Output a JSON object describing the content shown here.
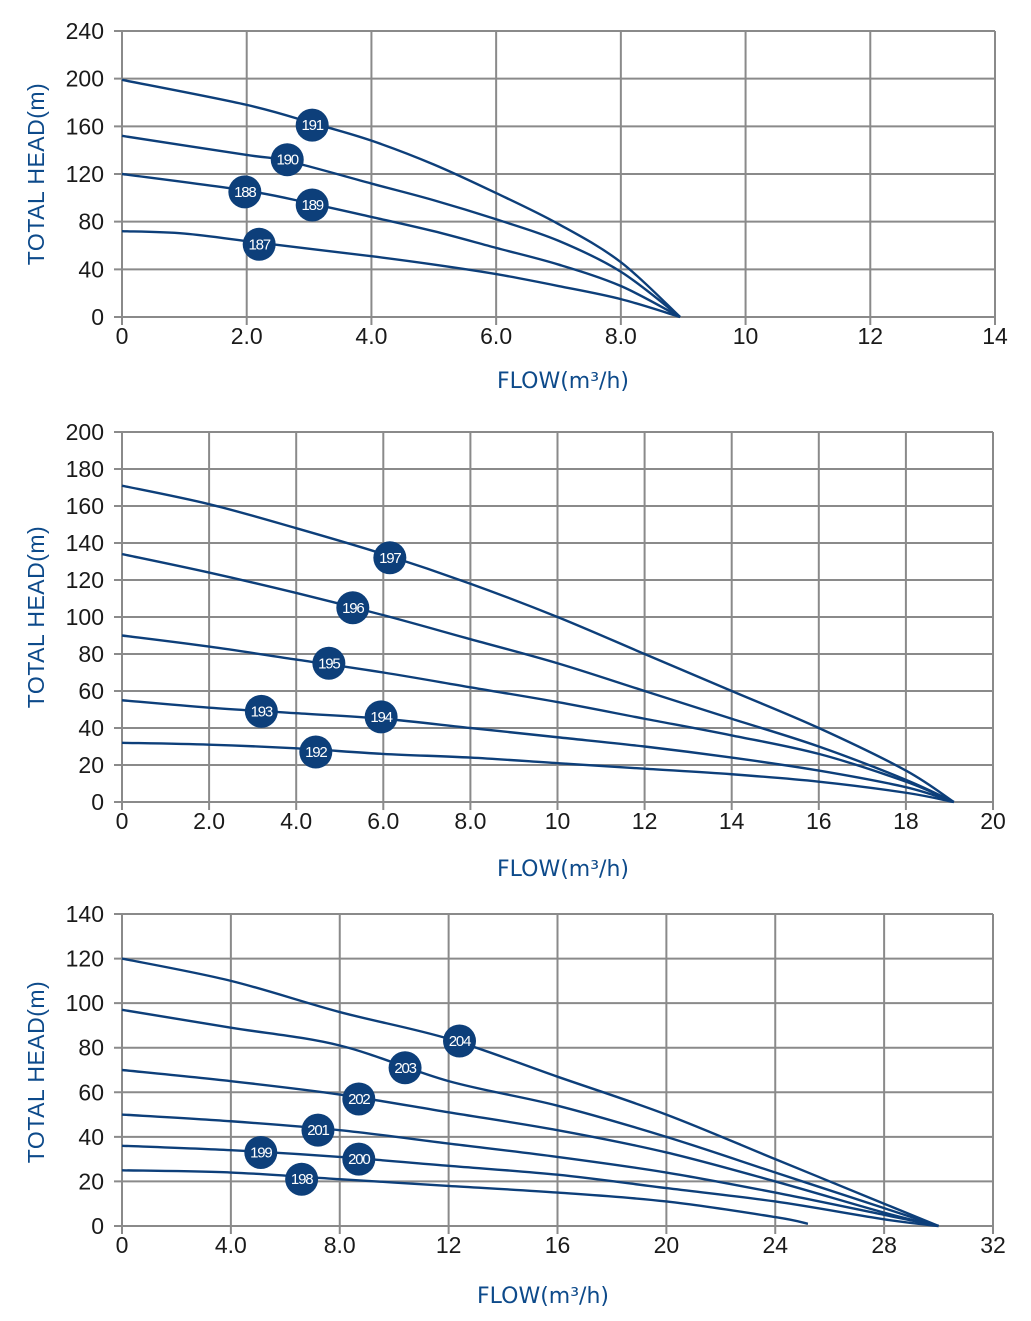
{
  "colors": {
    "curve": "#0d3f7a",
    "badge": "#0d3f7a",
    "grid": "#8a8a8a",
    "axis_title": "#0d4a8a"
  },
  "chart_data": [
    {
      "type": "line",
      "title": "",
      "xlabel": "FLOW(m³/h)",
      "ylabel": "TOTAL HEAD(m)",
      "xlim": [
        0,
        14
      ],
      "ylim": [
        0,
        240
      ],
      "xticks": [
        0,
        2,
        4,
        6,
        8,
        10,
        12,
        14
      ],
      "xtick_labels": [
        "0",
        "2.0",
        "4.0",
        "6.0",
        "8.0",
        "10",
        "12",
        "14"
      ],
      "yticks": [
        0,
        40,
        80,
        120,
        160,
        200,
        240
      ],
      "ytick_labels": [
        "0",
        "40",
        "80",
        "120",
        "160",
        "200",
        "240"
      ],
      "grid": true,
      "series": [
        {
          "name": "191",
          "points": [
            [
              0,
              199
            ],
            [
              2,
              178
            ],
            [
              3.1,
              162
            ],
            [
              4,
              148
            ],
            [
              5,
              128
            ],
            [
              6,
              104
            ],
            [
              7,
              78
            ],
            [
              8,
              46
            ],
            [
              8.95,
              0
            ]
          ]
        },
        {
          "name": "190",
          "points": [
            [
              0,
              152
            ],
            [
              2,
              136
            ],
            [
              2.65,
              131
            ],
            [
              4,
              112
            ],
            [
              5,
              98
            ],
            [
              6,
              82
            ],
            [
              7,
              64
            ],
            [
              8,
              38
            ],
            [
              8.95,
              0
            ]
          ]
        },
        {
          "name": "189",
          "points": [
            [
              0,
              120
            ],
            [
              2,
              106
            ],
            [
              3.05,
              95
            ],
            [
              4,
              84
            ],
            [
              5,
              72
            ],
            [
              6,
              58
            ],
            [
              7,
              44
            ],
            [
              8,
              26
            ],
            [
              8.95,
              0
            ]
          ]
        },
        {
          "name": "187",
          "points": [
            [
              0,
              72
            ],
            [
              1,
              70
            ],
            [
              2.25,
              62
            ],
            [
              4,
              51
            ],
            [
              5,
              44
            ],
            [
              6,
              36
            ],
            [
              7,
              26
            ],
            [
              8,
              15
            ],
            [
              8.95,
              0
            ]
          ]
        }
      ],
      "badges": [
        {
          "label": "191",
          "x": 3.05,
          "y": 161
        },
        {
          "label": "190",
          "x": 2.65,
          "y": 132
        },
        {
          "label": "188",
          "x": 1.97,
          "y": 105
        },
        {
          "label": "189",
          "x": 3.05,
          "y": 94
        },
        {
          "label": "187",
          "x": 2.2,
          "y": 61
        }
      ]
    },
    {
      "type": "line",
      "title": "",
      "xlabel": "FLOW(m³/h)",
      "ylabel": "TOTAL HEAD(m)",
      "xlim": [
        0,
        20
      ],
      "ylim": [
        0,
        200
      ],
      "xticks": [
        0,
        2,
        4,
        6,
        8,
        10,
        12,
        14,
        16,
        18,
        20
      ],
      "xtick_labels": [
        "0",
        "2.0",
        "4.0",
        "6.0",
        "8.0",
        "10",
        "12",
        "14",
        "16",
        "18",
        "20"
      ],
      "yticks": [
        0,
        20,
        40,
        60,
        80,
        100,
        120,
        140,
        160,
        180,
        200
      ],
      "ytick_labels": [
        "0",
        "20",
        "40",
        "60",
        "80",
        "100",
        "120",
        "140",
        "160",
        "180",
        "200"
      ],
      "grid": true,
      "series": [
        {
          "name": "197",
          "points": [
            [
              0,
              171
            ],
            [
              2,
              161
            ],
            [
              4,
              148
            ],
            [
              6,
              134
            ],
            [
              8,
              118
            ],
            [
              10,
              100
            ],
            [
              12,
              80
            ],
            [
              14,
              60
            ],
            [
              16,
              40
            ],
            [
              18,
              17
            ],
            [
              19.1,
              0
            ]
          ]
        },
        {
          "name": "196",
          "points": [
            [
              0,
              134
            ],
            [
              2,
              124
            ],
            [
              4,
              113
            ],
            [
              6,
              101
            ],
            [
              8,
              88
            ],
            [
              10,
              75
            ],
            [
              12,
              60
            ],
            [
              14,
              45
            ],
            [
              16,
              30
            ],
            [
              18,
              12
            ],
            [
              19.1,
              0
            ]
          ]
        },
        {
          "name": "195",
          "points": [
            [
              0,
              90
            ],
            [
              2,
              84
            ],
            [
              4,
              77
            ],
            [
              6,
              70
            ],
            [
              8,
              62
            ],
            [
              10,
              54
            ],
            [
              12,
              45
            ],
            [
              14,
              36
            ],
            [
              16,
              26
            ],
            [
              18,
              11
            ],
            [
              19.1,
              0
            ]
          ]
        },
        {
          "name": "194",
          "points": [
            [
              0,
              55
            ],
            [
              2,
              51
            ],
            [
              4,
              48
            ],
            [
              6,
              45
            ],
            [
              8,
              40
            ],
            [
              10,
              35
            ],
            [
              12,
              30
            ],
            [
              14,
              24
            ],
            [
              16,
              17
            ],
            [
              18,
              8
            ],
            [
              19.1,
              0
            ]
          ]
        },
        {
          "name": "192",
          "points": [
            [
              0,
              32
            ],
            [
              2,
              31
            ],
            [
              4,
              29
            ],
            [
              6,
              26
            ],
            [
              8,
              24
            ],
            [
              10,
              21
            ],
            [
              12,
              18
            ],
            [
              14,
              15
            ],
            [
              16,
              11
            ],
            [
              18,
              5
            ],
            [
              19.1,
              0
            ]
          ]
        }
      ],
      "badges": [
        {
          "label": "197",
          "x": 6.15,
          "y": 132
        },
        {
          "label": "196",
          "x": 5.3,
          "y": 105
        },
        {
          "label": "195",
          "x": 4.75,
          "y": 75
        },
        {
          "label": "193",
          "x": 3.2,
          "y": 49
        },
        {
          "label": "194",
          "x": 5.95,
          "y": 46
        },
        {
          "label": "192",
          "x": 4.45,
          "y": 27
        }
      ]
    },
    {
      "type": "line",
      "title": "",
      "xlabel": "FLOW(m³/h)",
      "ylabel": "TOTAL HEAD(m)",
      "xlim": [
        0,
        32
      ],
      "ylim": [
        0,
        140
      ],
      "xticks": [
        0,
        4,
        8,
        12,
        16,
        20,
        24,
        28,
        32
      ],
      "xtick_labels": [
        "0",
        "4.0",
        "8.0",
        "12",
        "16",
        "20",
        "24",
        "28",
        "32"
      ],
      "yticks": [
        0,
        20,
        40,
        60,
        80,
        100,
        120,
        140
      ],
      "ytick_labels": [
        "0",
        "20",
        "40",
        "60",
        "80",
        "100",
        "120",
        "140"
      ],
      "grid": true,
      "series": [
        {
          "name": "204",
          "points": [
            [
              0,
              120
            ],
            [
              4,
              110
            ],
            [
              8,
              96
            ],
            [
              12,
              84
            ],
            [
              16,
              67
            ],
            [
              20,
              50
            ],
            [
              24,
              30
            ],
            [
              28,
              10
            ],
            [
              30,
              0
            ]
          ]
        },
        {
          "name": "203",
          "points": [
            [
              0,
              97
            ],
            [
              4,
              89
            ],
            [
              8,
              81
            ],
            [
              12,
              65
            ],
            [
              16,
              54
            ],
            [
              20,
              40
            ],
            [
              24,
              24
            ],
            [
              28,
              8
            ],
            [
              30,
              0
            ]
          ]
        },
        {
          "name": "202",
          "points": [
            [
              0,
              70
            ],
            [
              4,
              65
            ],
            [
              8,
              59
            ],
            [
              12,
              51
            ],
            [
              16,
              43
            ],
            [
              20,
              33
            ],
            [
              24,
              20
            ],
            [
              28,
              6
            ],
            [
              30,
              0
            ]
          ]
        },
        {
          "name": "201",
          "points": [
            [
              0,
              50
            ],
            [
              4,
              47
            ],
            [
              8,
              43
            ],
            [
              12,
              37
            ],
            [
              16,
              31
            ],
            [
              20,
              24
            ],
            [
              24,
              15
            ],
            [
              28,
              5
            ],
            [
              30,
              0
            ]
          ]
        },
        {
          "name": "200",
          "points": [
            [
              0,
              36
            ],
            [
              4,
              34
            ],
            [
              8,
              31
            ],
            [
              12,
              27
            ],
            [
              16,
              23
            ],
            [
              20,
              17
            ],
            [
              24,
              11
            ],
            [
              28,
              3
            ],
            [
              30,
              0
            ]
          ]
        },
        {
          "name": "198",
          "points": [
            [
              0,
              25
            ],
            [
              4,
              24
            ],
            [
              8,
              21
            ],
            [
              12,
              18
            ],
            [
              16,
              15
            ],
            [
              20,
              11
            ],
            [
              24,
              4
            ],
            [
              25.2,
              1
            ]
          ]
        }
      ],
      "badges": [
        {
          "label": "204",
          "x": 12.4,
          "y": 83
        },
        {
          "label": "203",
          "x": 10.4,
          "y": 71
        },
        {
          "label": "202",
          "x": 8.7,
          "y": 57
        },
        {
          "label": "201",
          "x": 7.2,
          "y": 43
        },
        {
          "label": "199",
          "x": 5.1,
          "y": 33
        },
        {
          "label": "200",
          "x": 8.7,
          "y": 30
        },
        {
          "label": "198",
          "x": 6.6,
          "y": 21
        }
      ]
    }
  ]
}
